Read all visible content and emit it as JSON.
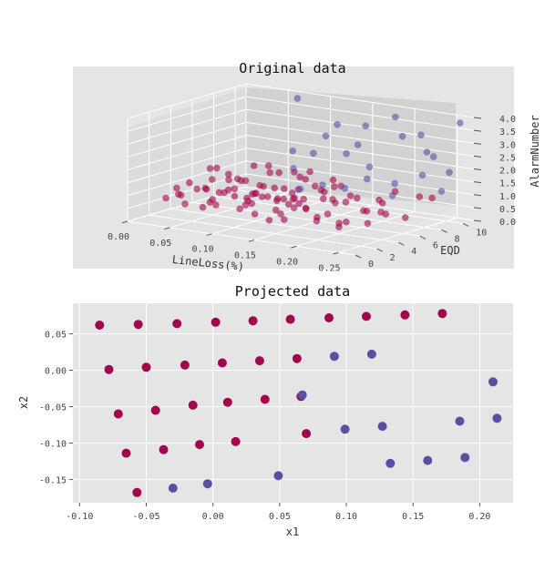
{
  "figure": {
    "colors": {
      "bg": "#e5e5e5",
      "grid": "#ffffff",
      "class_red": "#a2074d",
      "class_blue": "#5a4fa3",
      "pane_left": "#dcdcdc",
      "pane_right": "#d2d2d2",
      "pane_floor": "#e2e2e2"
    }
  },
  "chart_data": [
    {
      "type": "scatter",
      "projection": "3d",
      "title": "Original data",
      "xlabel": "LineLoss(%)",
      "ylabel": "EQD",
      "zlabel": "AlarmNumber",
      "xlim": [
        0,
        0.27
      ],
      "ylim": [
        0,
        11
      ],
      "zlim": [
        0,
        4
      ],
      "xticks": [
        "0.00",
        "0.05",
        "0.10",
        "0.15",
        "0.20",
        "0.25"
      ],
      "yticks": [
        "0",
        "2",
        "4",
        "6",
        "8",
        "10"
      ],
      "zticks": [
        "0.0",
        "0.5",
        "1.0",
        "1.5",
        "2.0",
        "2.5",
        "3.0",
        "3.5",
        "4.0"
      ],
      "grid": true,
      "marker_opacity": 0.6,
      "series": [
        {
          "color": "#a2074d",
          "points": [
            [
              0.01,
              7.5,
              1.2
            ],
            [
              0.015,
              8.2,
              0.9
            ],
            [
              0.02,
              6.1,
              1.4
            ],
            [
              0.025,
              9.0,
              0.6
            ],
            [
              0.03,
              5.5,
              1.1
            ],
            [
              0.035,
              7.8,
              0.8
            ],
            [
              0.04,
              8.6,
              1.3
            ],
            [
              0.045,
              6.4,
              0.7
            ],
            [
              0.05,
              9.3,
              1.0
            ],
            [
              0.055,
              5.9,
              1.2
            ],
            [
              0.06,
              7.1,
              0.5
            ],
            [
              0.065,
              8.0,
              1.5
            ],
            [
              0.07,
              6.8,
              0.9
            ],
            [
              0.075,
              9.6,
              1.1
            ],
            [
              0.08,
              5.3,
              0.8
            ],
            [
              0.085,
              7.4,
              1.4
            ],
            [
              0.09,
              8.8,
              0.6
            ],
            [
              0.095,
              6.2,
              1.0
            ],
            [
              0.1,
              9.1,
              1.3
            ],
            [
              0.105,
              5.7,
              0.7
            ],
            [
              0.11,
              7.9,
              1.2
            ],
            [
              0.115,
              8.4,
              0.9
            ],
            [
              0.12,
              6.6,
              1.5
            ],
            [
              0.125,
              9.4,
              0.8
            ],
            [
              0.13,
              5.1,
              1.1
            ],
            [
              0.135,
              7.6,
              0.6
            ],
            [
              0.14,
              8.1,
              1.3
            ],
            [
              0.145,
              6.9,
              1.0
            ],
            [
              0.02,
              3.4,
              0.7
            ],
            [
              0.025,
              2.6,
              1.1
            ],
            [
              0.03,
              4.1,
              0.9
            ],
            [
              0.035,
              3.0,
              1.3
            ],
            [
              0.04,
              2.2,
              0.6
            ],
            [
              0.045,
              3.8,
              1.0
            ],
            [
              0.05,
              4.6,
              0.8
            ],
            [
              0.055,
              2.9,
              1.2
            ],
            [
              0.06,
              3.5,
              0.5
            ],
            [
              0.065,
              4.3,
              1.4
            ],
            [
              0.07,
              2.4,
              0.9
            ],
            [
              0.075,
              3.1,
              1.1
            ],
            [
              0.08,
              4.8,
              0.7
            ],
            [
              0.085,
              2.7,
              1.3
            ],
            [
              0.09,
              3.9,
              0.6
            ],
            [
              0.095,
              4.5,
              1.0
            ],
            [
              0.1,
              2.1,
              1.2
            ],
            [
              0.105,
              3.3,
              0.8
            ],
            [
              0.11,
              4.0,
              1.4
            ],
            [
              0.115,
              2.8,
              0.5
            ],
            [
              0.12,
              3.6,
              1.1
            ],
            [
              0.125,
              4.7,
              0.9
            ],
            [
              0.13,
              2.3,
              1.3
            ],
            [
              0.135,
              3.2,
              0.7
            ],
            [
              0.14,
              4.4,
              1.0
            ],
            [
              0.145,
              2.5,
              1.2
            ],
            [
              0.15,
              3.7,
              0.8
            ],
            [
              0.155,
              4.2,
              1.1
            ],
            [
              0.16,
              2.0,
              0.6
            ],
            [
              0.03,
              1.2,
              0.9
            ],
            [
              0.05,
              0.8,
              1.2
            ],
            [
              0.07,
              1.5,
              0.7
            ],
            [
              0.09,
              0.6,
              1.1
            ],
            [
              0.11,
              1.8,
              0.8
            ],
            [
              0.13,
              1.0,
              1.3
            ],
            [
              0.15,
              1.4,
              0.6
            ],
            [
              0.17,
              0.9,
              1.0
            ],
            [
              0.19,
              1.7,
              1.2
            ],
            [
              0.21,
              1.1,
              0.9
            ],
            [
              0.23,
              1.6,
              0.7
            ],
            [
              0.25,
              0.7,
              1.1
            ],
            [
              0.15,
              3.2,
              1.0
            ],
            [
              0.16,
              4.0,
              0.8
            ],
            [
              0.17,
              2.6,
              1.2
            ],
            [
              0.18,
              3.5,
              0.6
            ],
            [
              0.19,
              4.4,
              1.1
            ],
            [
              0.2,
              2.9,
              0.9
            ],
            [
              0.21,
              3.8,
              1.3
            ],
            [
              0.22,
              2.4,
              0.7
            ],
            [
              0.23,
              4.2,
              1.0
            ],
            [
              0.24,
              3.1,
              1.2
            ],
            [
              0.25,
              2.7,
              0.8
            ],
            [
              0.26,
              3.6,
              1.1
            ],
            [
              0.17,
              6.5,
              1.4
            ],
            [
              0.18,
              7.2,
              0.9
            ],
            [
              0.19,
              5.8,
              1.2
            ],
            [
              0.2,
              8.0,
              0.7
            ],
            [
              0.21,
              6.9,
              1.0
            ],
            [
              0.22,
              7.6,
              1.3
            ],
            [
              0.23,
              5.5,
              0.8
            ],
            [
              0.24,
              8.3,
              1.1
            ],
            [
              0.25,
              6.2,
              0.6
            ],
            [
              0.26,
              7.9,
              1.2
            ],
            [
              0.16,
              2.0,
              1.8
            ],
            [
              0.18,
              1.4,
              1.6
            ],
            [
              0.2,
              2.3,
              1.9
            ],
            [
              0.22,
              1.8,
              1.7
            ]
          ]
        },
        {
          "color": "#5a4fa3",
          "points": [
            [
              0.08,
              9.5,
              4.0
            ],
            [
              0.12,
              9.0,
              2.8
            ],
            [
              0.14,
              8.5,
              3.4
            ],
            [
              0.18,
              8.0,
              3.6
            ],
            [
              0.2,
              9.2,
              3.9
            ],
            [
              0.22,
              10.0,
              3.2
            ],
            [
              0.24,
              9.6,
              2.5
            ],
            [
              0.26,
              10.5,
              3.8
            ],
            [
              0.25,
              8.2,
              2.9
            ],
            [
              0.23,
              7.5,
              3.5
            ],
            [
              0.17,
              7.0,
              2.6
            ],
            [
              0.19,
              6.5,
              3.1
            ],
            [
              0.21,
              6.0,
              2.4
            ],
            [
              0.15,
              5.5,
              2.7
            ],
            [
              0.26,
              7.0,
              2.2
            ],
            [
              0.24,
              6.0,
              1.9
            ],
            [
              0.22,
              5.0,
              2.1
            ],
            [
              0.2,
              4.5,
              1.7
            ],
            [
              0.18,
              4.0,
              1.8
            ],
            [
              0.16,
              3.5,
              1.6
            ],
            [
              0.26,
              9.5,
              2.0
            ],
            [
              0.12,
              6.0,
              1.9
            ],
            [
              0.1,
              7.5,
              2.3
            ],
            [
              0.25,
              5.0,
              1.6
            ],
            [
              0.27,
              8.0,
              1.5
            ]
          ]
        }
      ]
    },
    {
      "type": "scatter",
      "title": "Projected data",
      "xlabel": "x1",
      "ylabel": "x2",
      "xlim": [
        -0.105,
        0.225
      ],
      "ylim": [
        -0.182,
        0.092
      ],
      "xticks": [
        "-0.10",
        "-0.05",
        "0.00",
        "0.05",
        "0.10",
        "0.15",
        "0.20"
      ],
      "yticks": [
        "0.05",
        "0.00",
        "-0.05",
        "-0.10",
        "-0.15"
      ],
      "grid": true,
      "series": [
        {
          "color": "#a2074d",
          "points": [
            [
              -0.085,
              0.062
            ],
            [
              -0.056,
              0.063
            ],
            [
              -0.027,
              0.064
            ],
            [
              0.002,
              0.066
            ],
            [
              0.03,
              0.068
            ],
            [
              0.058,
              0.07
            ],
            [
              0.087,
              0.072
            ],
            [
              0.115,
              0.074
            ],
            [
              0.144,
              0.076
            ],
            [
              0.172,
              0.078
            ],
            [
              -0.078,
              0.001
            ],
            [
              -0.05,
              0.004
            ],
            [
              -0.021,
              0.007
            ],
            [
              0.007,
              0.01
            ],
            [
              0.035,
              0.013
            ],
            [
              0.063,
              0.016
            ],
            [
              -0.071,
              -0.06
            ],
            [
              -0.043,
              -0.055
            ],
            [
              -0.015,
              -0.048
            ],
            [
              0.011,
              -0.044
            ],
            [
              0.039,
              -0.04
            ],
            [
              0.066,
              -0.036
            ],
            [
              -0.065,
              -0.114
            ],
            [
              -0.037,
              -0.109
            ],
            [
              -0.01,
              -0.102
            ],
            [
              0.017,
              -0.098
            ],
            [
              0.07,
              -0.087
            ],
            [
              -0.057,
              -0.168
            ]
          ]
        },
        {
          "color": "#5a4fa3",
          "points": [
            [
              0.091,
              0.019
            ],
            [
              0.119,
              0.022
            ],
            [
              0.067,
              -0.034
            ],
            [
              0.099,
              -0.081
            ],
            [
              0.127,
              -0.077
            ],
            [
              0.185,
              -0.07
            ],
            [
              0.213,
              -0.066
            ],
            [
              0.21,
              -0.016
            ],
            [
              0.049,
              -0.145
            ],
            [
              0.133,
              -0.128
            ],
            [
              0.161,
              -0.124
            ],
            [
              0.189,
              -0.12
            ],
            [
              -0.004,
              -0.156
            ],
            [
              -0.03,
              -0.162
            ]
          ]
        }
      ]
    }
  ]
}
